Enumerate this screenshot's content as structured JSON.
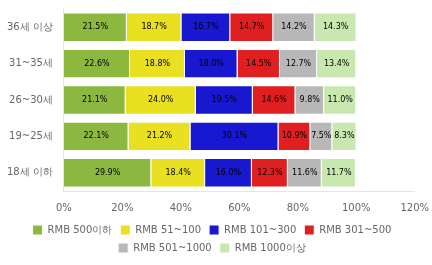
{
  "chart_data": {
    "type": "bar",
    "orientation": "horizontal",
    "stacked": true,
    "data_labels": true,
    "grid": false,
    "legend": "bottom",
    "categories": [
      "36세 이상",
      "31~35세",
      "26~30세",
      "19~25세",
      "18세 이하"
    ],
    "series": [
      {
        "name": "RMB 500이하",
        "color": "#8db840",
        "values": [
          21.5,
          22.6,
          21.1,
          22.1,
          29.9
        ],
        "value_labels": [
          "21.5%",
          "22.6%",
          "21.1%",
          "22.1%",
          "29.9%"
        ]
      },
      {
        "name": "RMB 51~100",
        "color": "#e8e020",
        "values": [
          18.7,
          18.8,
          24.0,
          21.2,
          18.4
        ],
        "value_labels": [
          "18.7%",
          "18.8%",
          "24.0%",
          "21.2%",
          "18.4%"
        ]
      },
      {
        "name": "RMB 101~300",
        "color": "#1818d0",
        "values": [
          16.7,
          18.0,
          19.5,
          30.1,
          16.0
        ],
        "value_labels": [
          "16.7%",
          "18.0%",
          "19.5%",
          "30.1%",
          "16.0%"
        ]
      },
      {
        "name": "RMB 301~500",
        "color": "#e02020",
        "values": [
          14.7,
          14.5,
          14.6,
          10.9,
          12.3
        ],
        "value_labels": [
          "14.7%",
          "14.5%",
          "14.6%",
          "10.9%",
          "12.3%"
        ]
      },
      {
        "name": "RMB 501~1000",
        "color": "#b8b8b8",
        "values": [
          14.2,
          12.7,
          9.8,
          7.5,
          11.6
        ],
        "value_labels": [
          "14.2%",
          "12.7%",
          "9.8%",
          "7.5%",
          "11.6%"
        ]
      },
      {
        "name": "RMB 1000이상",
        "color": "#c8e8b0",
        "values": [
          14.3,
          13.4,
          11.0,
          8.3,
          11.7
        ],
        "value_labels": [
          "14.3%",
          "13.4%",
          "11.0%",
          "8.3%",
          "11.7%"
        ]
      }
    ],
    "xlim": [
      0,
      120
    ],
    "xticks": [
      {
        "value": 0,
        "label": "0%"
      },
      {
        "value": 20,
        "label": "20%"
      },
      {
        "value": 40,
        "label": "40%"
      },
      {
        "value": 60,
        "label": "60%"
      },
      {
        "value": 80,
        "label": "80%"
      },
      {
        "value": 100,
        "label": "100%"
      },
      {
        "value": 120,
        "label": "120%"
      }
    ]
  }
}
